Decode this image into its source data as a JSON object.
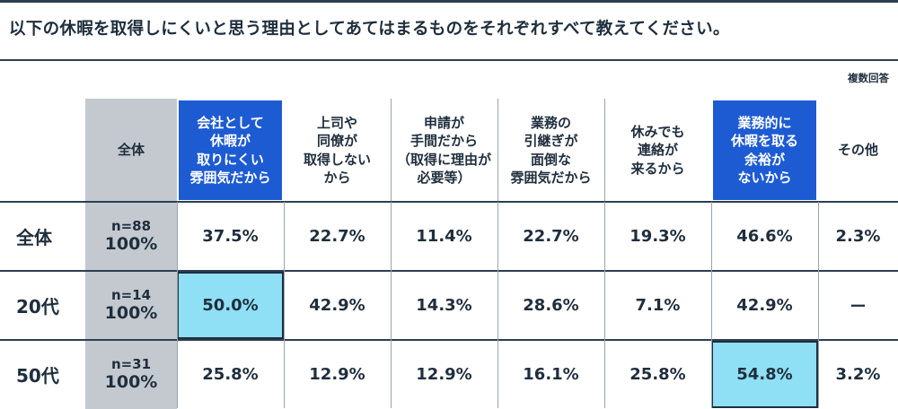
{
  "title": "以下の休暇を取得しにくいと思う理由としてあてはまるものをそれぞれすべて教えてください。",
  "note": "複数回答",
  "chart_data": {
    "type": "table",
    "total_header": "全体",
    "columns": [
      {
        "label": "会社として\n休暇が\n取りにくい\n雰囲気だから",
        "highlight": true
      },
      {
        "label": "上司や\n同僚が\n取得しない\nから",
        "highlight": false
      },
      {
        "label": "申請が\n手間だから\n（取得に理由が\n必要等）",
        "highlight": false
      },
      {
        "label": "業務の\n引継ぎが\n面倒な\n雰囲気だから",
        "highlight": false
      },
      {
        "label": "休みでも\n連絡が\n来るから",
        "highlight": false
      },
      {
        "label": "業務的に\n休暇を取る\n余裕が\nないから",
        "highlight": true
      },
      {
        "label": "その他",
        "highlight": false
      }
    ],
    "rows": [
      {
        "label": "全体",
        "n": "n=88",
        "pct": "100%",
        "values": [
          "37.5%",
          "22.7%",
          "11.4%",
          "22.7%",
          "19.3%",
          "46.6%",
          "2.3%"
        ],
        "highlight_index": -1
      },
      {
        "label": "20代",
        "n": "n=14",
        "pct": "100%",
        "values": [
          "50.0%",
          "42.9%",
          "14.3%",
          "28.6%",
          "7.1%",
          "42.9%",
          "ー"
        ],
        "highlight_index": 0
      },
      {
        "label": "50代",
        "n": "n=31",
        "pct": "100%",
        "values": [
          "25.8%",
          "12.9%",
          "12.9%",
          "16.1%",
          "25.8%",
          "54.8%",
          "3.2%"
        ],
        "highlight_index": 5
      }
    ],
    "colors": {
      "header_highlight": "#1d5bd3",
      "cell_highlight": "#8fdff5",
      "total_column": "#c3c9cf",
      "rules": "#2c3e50"
    }
  }
}
